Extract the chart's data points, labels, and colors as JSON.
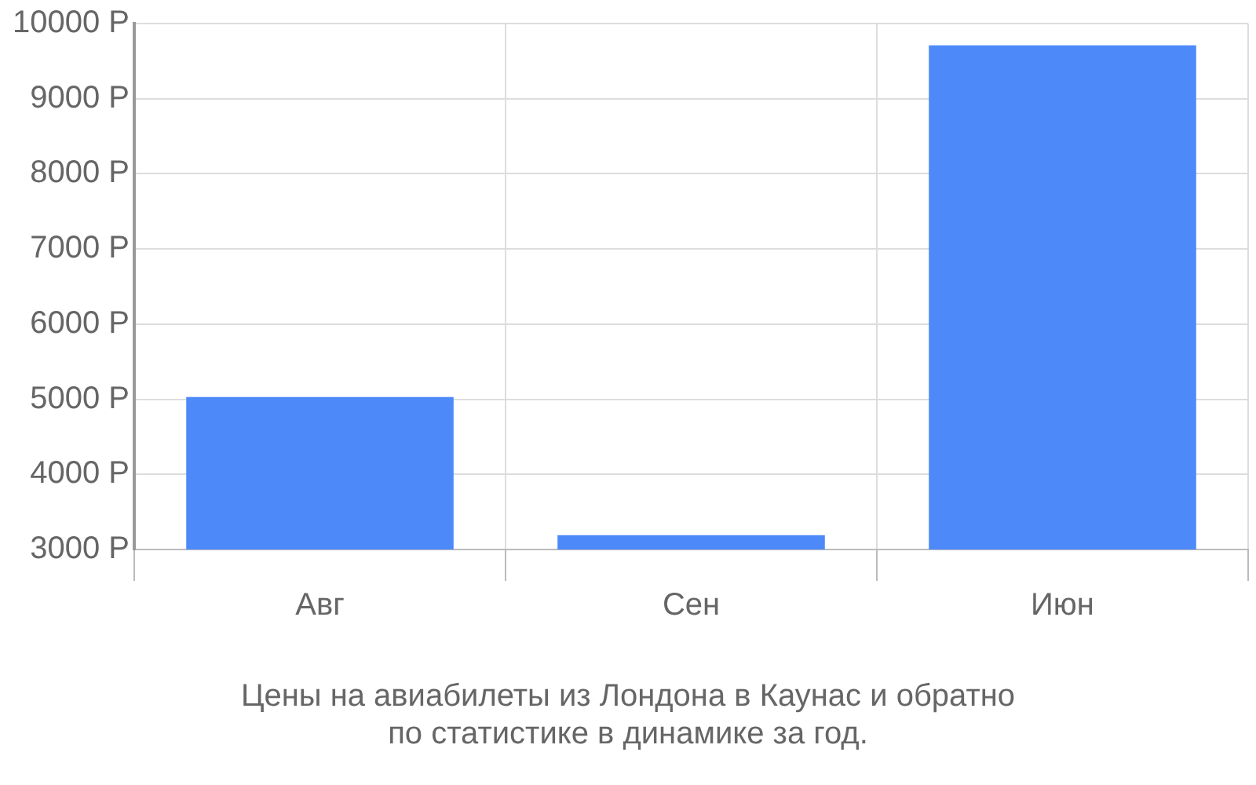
{
  "chart_data": {
    "type": "bar",
    "title": "Цены на авиабилеты из Лондона в Каунас и обратно\nпо статистике в динамике за год.",
    "categories": [
      "Авг",
      "Сен",
      "Июн"
    ],
    "values": [
      5030,
      3190,
      9710
    ],
    "color": "#4d89f9",
    "ylim": [
      3000,
      10000
    ],
    "yticks": [
      {
        "value": 3000,
        "label": "3000 Р"
      },
      {
        "value": 4000,
        "label": "4000 Р"
      },
      {
        "value": 5000,
        "label": "5000 Р"
      },
      {
        "value": 6000,
        "label": "6000 Р"
      },
      {
        "value": 7000,
        "label": "7000 Р"
      },
      {
        "value": 8000,
        "label": "8000 Р"
      },
      {
        "value": 9000,
        "label": "9000 Р"
      },
      {
        "value": 10000,
        "label": "10000 Р"
      }
    ],
    "grid": true
  }
}
